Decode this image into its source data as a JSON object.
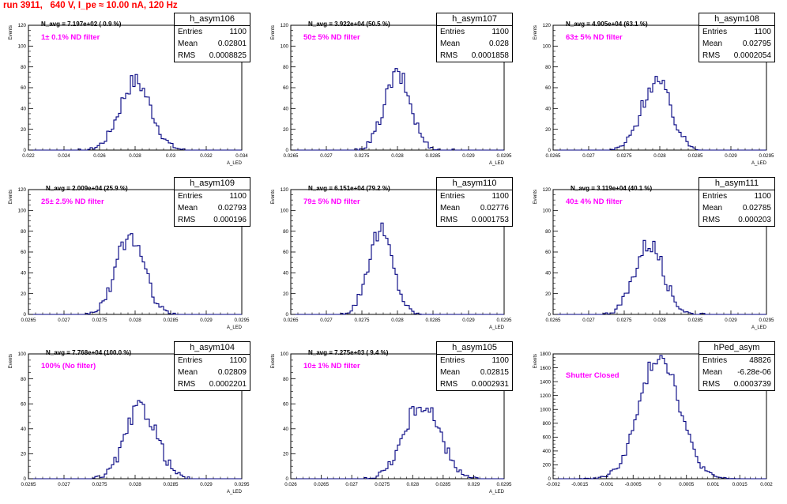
{
  "page_title": "run 3911,   640 V, I_pe ≈ 10.00 nA, 120 Hz",
  "stats_labels": {
    "entries": "Entries",
    "mean": "Mean",
    "rms": "RMS"
  },
  "axis_labels": {
    "y": "Events"
  },
  "colors": {
    "histogram": "#000080",
    "title": "#ff0000",
    "note": "#ff00ff"
  },
  "chart_data": [
    {
      "type": "histogram",
      "name": "h_asym106",
      "nav": "N_avg = 7.197e+02 ( 0.9 %)",
      "note": "1± 0.1% ND filter",
      "entries": "1100",
      "mean": "0.02801",
      "rms": "0.0008825",
      "xlabel": "A_LED",
      "ylabel": "Events",
      "xlim": [
        0.022,
        0.034
      ],
      "ylim": [
        0,
        120
      ],
      "xticks": [
        "0.022",
        "0.024",
        "0.026",
        "0.028",
        "0.03",
        "0.032",
        "0.034"
      ],
      "yticks": [
        "0",
        "20",
        "40",
        "60",
        "80",
        "100",
        "120"
      ],
      "dist": {
        "mu": 0.02801,
        "sigma": 0.00088,
        "peak": 66
      }
    },
    {
      "type": "histogram",
      "name": "h_asym107",
      "nav": "N_avg = 3.922e+04 (50.5 %)",
      "note": "50± 5% ND filter",
      "entries": "1100",
      "mean": "0.028",
      "rms": "0.0001858",
      "xlabel": "A_LED",
      "ylabel": "Events",
      "xlim": [
        0.0265,
        0.0295
      ],
      "ylim": [
        0,
        120
      ],
      "xticks": [
        "0.0265",
        "0.027",
        "0.0275",
        "0.028",
        "0.0285",
        "0.029",
        "0.0295"
      ],
      "yticks": [
        "0",
        "20",
        "40",
        "60",
        "80",
        "100",
        "120"
      ],
      "dist": {
        "mu": 0.028,
        "sigma": 0.000186,
        "peak": 72
      }
    },
    {
      "type": "histogram",
      "name": "h_asym108",
      "nav": "N_avg = 4.905e+04 (63.1 %)",
      "note": "63± 5% ND filter",
      "entries": "1100",
      "mean": "0.02795",
      "rms": "0.0002054",
      "xlabel": "A_LED",
      "ylabel": "Events",
      "xlim": [
        0.0265,
        0.0295
      ],
      "ylim": [
        0,
        120
      ],
      "xticks": [
        "0.0265",
        "0.027",
        "0.0275",
        "0.028",
        "0.0285",
        "0.029",
        "0.0295"
      ],
      "yticks": [
        "0",
        "20",
        "40",
        "60",
        "80",
        "100",
        "120"
      ],
      "dist": {
        "mu": 0.02795,
        "sigma": 0.000205,
        "peak": 67
      }
    },
    {
      "type": "histogram",
      "name": "h_asym109",
      "nav": "N_avg = 2.009e+04 (25.9 %)",
      "note": "25± 2.5% ND filter",
      "entries": "1100",
      "mean": "0.02793",
      "rms": "0.000196",
      "xlabel": "A_LED",
      "ylabel": "Events",
      "xlim": [
        0.0265,
        0.0295
      ],
      "ylim": [
        0,
        120
      ],
      "xticks": [
        "0.0265",
        "0.027",
        "0.0275",
        "0.028",
        "0.0285",
        "0.029",
        "0.0295"
      ],
      "yticks": [
        "0",
        "20",
        "40",
        "60",
        "80",
        "100",
        "120"
      ],
      "dist": {
        "mu": 0.02793,
        "sigma": 0.000196,
        "peak": 76
      }
    },
    {
      "type": "histogram",
      "name": "h_asym110",
      "nav": "N_avg = 6.151e+04 (79.2 %)",
      "note": "79± 5% ND filter",
      "entries": "1100",
      "mean": "0.02776",
      "rms": "0.0001753",
      "xlabel": "A_LED",
      "ylabel": "Events",
      "xlim": [
        0.0265,
        0.0295
      ],
      "ylim": [
        0,
        120
      ],
      "xticks": [
        "0.0265",
        "0.027",
        "0.0275",
        "0.028",
        "0.0285",
        "0.029",
        "0.0295"
      ],
      "yticks": [
        "0",
        "20",
        "40",
        "60",
        "80",
        "100",
        "120"
      ],
      "dist": {
        "mu": 0.02776,
        "sigma": 0.000175,
        "peak": 80
      }
    },
    {
      "type": "histogram",
      "name": "h_asym111",
      "nav": "N_avg = 3.119e+04 (40.1 %)",
      "note": "40± 4% ND filter",
      "entries": "1100",
      "mean": "0.02785",
      "rms": "0.000203",
      "xlabel": "A_LED",
      "ylabel": "Events",
      "xlim": [
        0.0265,
        0.0295
      ],
      "ylim": [
        0,
        120
      ],
      "xticks": [
        "0.0265",
        "0.027",
        "0.0275",
        "0.028",
        "0.0285",
        "0.029",
        "0.0295"
      ],
      "yticks": [
        "0",
        "20",
        "40",
        "60",
        "80",
        "100",
        "120"
      ],
      "dist": {
        "mu": 0.02785,
        "sigma": 0.000203,
        "peak": 68
      }
    },
    {
      "type": "histogram",
      "name": "h_asym104",
      "nav": "N_avg = 7.768e+04 (100.0 %)",
      "note": "100% (No filter)",
      "entries": "1100",
      "mean": "0.02809",
      "rms": "0.0002201",
      "xlabel": "A_LED",
      "ylabel": "Events",
      "xlim": [
        0.0265,
        0.0295
      ],
      "ylim": [
        0,
        100
      ],
      "xticks": [
        "0.0265",
        "0.027",
        "0.0275",
        "0.028",
        "0.0285",
        "0.029",
        "0.0295"
      ],
      "yticks": [
        "0",
        "20",
        "40",
        "60",
        "80",
        "100"
      ],
      "dist": {
        "mu": 0.02809,
        "sigma": 0.00022,
        "peak": 57
      }
    },
    {
      "type": "histogram",
      "name": "h_asym105",
      "nav": "N_avg = 7.275e+03 ( 9.4 %)",
      "note": "10± 1% ND filter",
      "entries": "1100",
      "mean": "0.02815",
      "rms": "0.0002931",
      "xlabel": "A_LED",
      "ylabel": "Events",
      "xlim": [
        0.026,
        0.0295
      ],
      "ylim": [
        0,
        100
      ],
      "xticks": [
        "0.026",
        "0.0265",
        "0.027",
        "0.0275",
        "0.028",
        "0.0285",
        "0.029",
        "0.0295"
      ],
      "yticks": [
        "0",
        "20",
        "40",
        "60",
        "80",
        "100"
      ],
      "dist": {
        "mu": 0.02815,
        "sigma": 0.000293,
        "peak": 60
      }
    },
    {
      "type": "histogram",
      "name": "hPed_asym",
      "nav": "",
      "note": "Shutter Closed",
      "entries": "48826",
      "mean": "-6.28e-06",
      "rms": "0.0003739",
      "xlabel": "",
      "ylabel": "Events",
      "xlim": [
        -0.002,
        0.002
      ],
      "ylim": [
        0,
        1800
      ],
      "xticks": [
        "-0.002",
        "-0.0015",
        "-0.001",
        "-0.0005",
        "0",
        "0.0005",
        "0.001",
        "0.0015",
        "0.002"
      ],
      "yticks": [
        "0",
        "200",
        "400",
        "600",
        "800",
        "1000",
        "1200",
        "1400",
        "1600",
        "1800"
      ],
      "dist": {
        "mu": 0.0,
        "sigma": 0.00037,
        "peak": 1800
      }
    }
  ]
}
